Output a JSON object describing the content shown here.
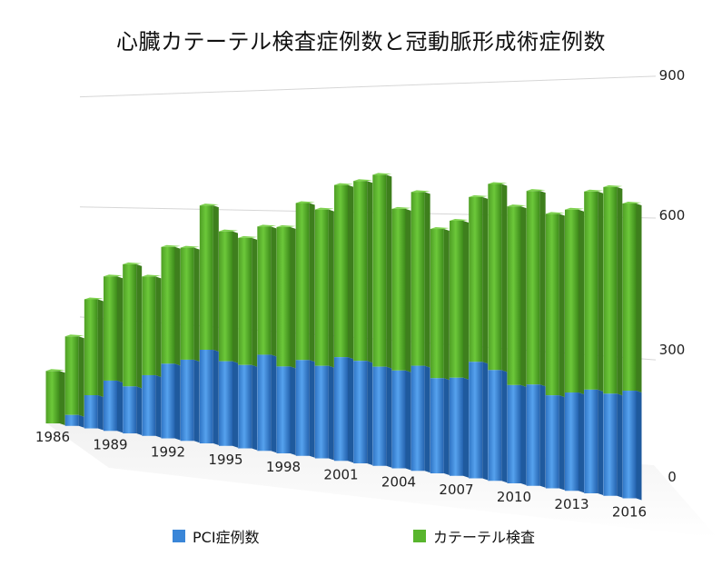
{
  "chart_data": {
    "type": "bar",
    "stacked": true,
    "title": "心臓カテーテル検査症例数と冠動脈形成術症例数",
    "categories": [
      "1986",
      "1987",
      "1988",
      "1989",
      "1990",
      "1991",
      "1992",
      "1993",
      "1994",
      "1995",
      "1996",
      "1997",
      "1998",
      "1999",
      "2000",
      "2001",
      "2002",
      "2003",
      "2004",
      "2005",
      "2006",
      "2007",
      "2008",
      "2009",
      "2010",
      "2011",
      "2012",
      "2013",
      "2014",
      "2015",
      "2016"
    ],
    "x_tick_labels": [
      "1986",
      "1989",
      "1992",
      "1995",
      "1998",
      "2001",
      "2004",
      "2007",
      "2010",
      "2013",
      "2016"
    ],
    "series": [
      {
        "name": "PCI症例数",
        "color": "#3a86d8",
        "values": [
          0,
          30,
          90,
          135,
          125,
          160,
          195,
          210,
          240,
          215,
          210,
          240,
          215,
          235,
          225,
          250,
          245,
          235,
          230,
          245,
          220,
          225,
          265,
          250,
          220,
          225,
          205,
          215,
          225,
          220,
          230
        ]
      },
      {
        "name": "カテーテル検査",
        "color": "#58b52d",
        "values": [
          145,
          245,
          350,
          415,
          450,
          420,
          500,
          500,
          610,
          545,
          530,
          560,
          560,
          620,
          605,
          665,
          675,
          690,
          610,
          650,
          565,
          585,
          640,
          670,
          620,
          655,
          605,
          615,
          655,
          665,
          630
        ]
      }
    ],
    "y_ticks": [
      0,
      300,
      600,
      900
    ],
    "ylim": [
      0,
      900
    ],
    "grid": true,
    "legend_position": "bottom"
  }
}
